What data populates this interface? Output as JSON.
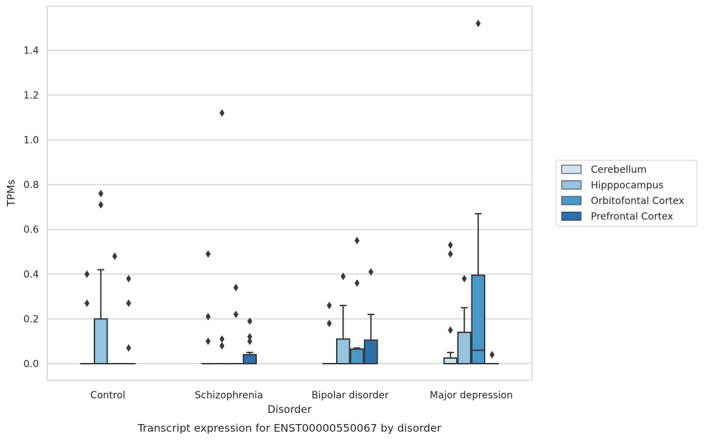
{
  "caption": "Transcript expression for ENST00000550067 by disorder",
  "chart_data": {
    "type": "box",
    "xlabel": "Disorder",
    "ylabel": "TPMs",
    "ylim": [
      -0.075,
      1.6
    ],
    "yticks": [
      0.0,
      0.2,
      0.4,
      0.6,
      0.8,
      1.0,
      1.2,
      1.4
    ],
    "ytick_labels": [
      "0.0",
      "0.2",
      "0.4",
      "0.6",
      "0.8",
      "1.0",
      "1.2",
      "1.4"
    ],
    "grid": "horizontal",
    "legend_position": "right",
    "categories": [
      "Control",
      "Schizophrenia",
      "Bipolar disorder",
      "Major depression"
    ],
    "series": [
      {
        "name": "Cerebellum",
        "color": "#d0e1f2",
        "boxes": [
          {
            "q1": 0.0,
            "median": 0.0,
            "q3": 0.0,
            "whisker_low": 0.0,
            "whisker_high": 0.0,
            "outliers": [
              0.4,
              0.27
            ]
          },
          {
            "q1": 0.0,
            "median": 0.0,
            "q3": 0.0,
            "whisker_low": 0.0,
            "whisker_high": 0.0,
            "outliers": [
              0.49,
              0.21,
              0.1
            ]
          },
          {
            "q1": 0.0,
            "median": 0.0,
            "q3": 0.0,
            "whisker_low": 0.0,
            "whisker_high": 0.0,
            "outliers": [
              0.26,
              0.18
            ]
          },
          {
            "q1": 0.0,
            "median": 0.0,
            "q3": 0.025,
            "whisker_low": 0.0,
            "whisker_high": 0.05,
            "outliers": [
              0.53,
              0.49,
              0.15
            ]
          }
        ]
      },
      {
        "name": "Hipppocampus",
        "color": "#94c4df",
        "boxes": [
          {
            "q1": 0.0,
            "median": 0.0,
            "q3": 0.2,
            "whisker_low": 0.0,
            "whisker_high": 0.42,
            "outliers": [
              0.76,
              0.71
            ]
          },
          {
            "q1": 0.0,
            "median": 0.0,
            "q3": 0.0,
            "whisker_low": 0.0,
            "whisker_high": 0.0,
            "outliers": [
              1.12,
              0.11,
              0.08
            ]
          },
          {
            "q1": 0.0,
            "median": 0.0,
            "q3": 0.11,
            "whisker_low": 0.0,
            "whisker_high": 0.26,
            "outliers": [
              0.39
            ]
          },
          {
            "q1": 0.0,
            "median": 0.0,
            "q3": 0.14,
            "whisker_low": 0.0,
            "whisker_high": 0.25,
            "outliers": [
              0.38
            ]
          }
        ]
      },
      {
        "name": "Orbitofontal Cortex",
        "color": "#4a98c9",
        "boxes": [
          {
            "q1": 0.0,
            "median": 0.0,
            "q3": 0.0,
            "whisker_low": 0.0,
            "whisker_high": 0.0,
            "outliers": [
              0.48
            ]
          },
          {
            "q1": 0.0,
            "median": 0.0,
            "q3": 0.0,
            "whisker_low": 0.0,
            "whisker_high": 0.0,
            "outliers": [
              0.34,
              0.22
            ]
          },
          {
            "q1": 0.0,
            "median": 0.065,
            "q3": 0.065,
            "whisker_low": 0.0,
            "whisker_high": 0.07,
            "outliers": [
              0.55,
              0.36
            ]
          },
          {
            "q1": 0.0,
            "median": 0.06,
            "q3": 0.395,
            "whisker_low": 0.0,
            "whisker_high": 0.67,
            "outliers": [
              1.52
            ]
          }
        ]
      },
      {
        "name": "Prefrontal Cortex",
        "color": "#2e6fad",
        "boxes": [
          {
            "q1": 0.0,
            "median": 0.0,
            "q3": 0.0,
            "whisker_low": 0.0,
            "whisker_high": 0.0,
            "outliers": [
              0.38,
              0.27,
              0.07
            ]
          },
          {
            "q1": 0.0,
            "median": 0.0,
            "q3": 0.04,
            "whisker_low": 0.0,
            "whisker_high": 0.05,
            "outliers": [
              0.19,
              0.12,
              0.1
            ]
          },
          {
            "q1": 0.0,
            "median": 0.0,
            "q3": 0.105,
            "whisker_low": 0.0,
            "whisker_high": 0.22,
            "outliers": [
              0.41
            ]
          },
          {
            "q1": 0.0,
            "median": 0.0,
            "q3": 0.0,
            "whisker_low": 0.0,
            "whisker_high": 0.0,
            "outliers": [
              0.04
            ]
          }
        ]
      }
    ]
  }
}
